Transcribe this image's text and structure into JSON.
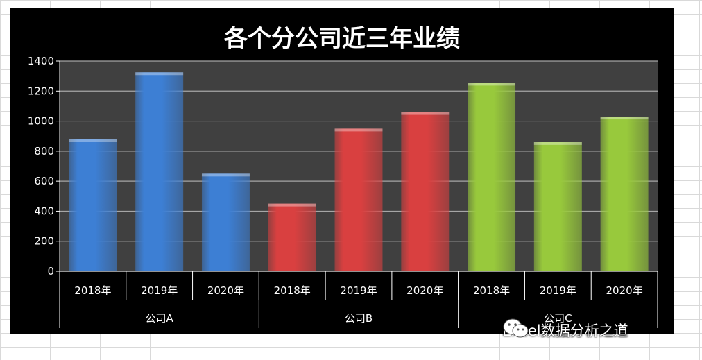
{
  "chart_data": {
    "type": "bar",
    "title": "各个分公司近三年业绩",
    "groups": [
      {
        "name": "公司A",
        "categories": [
          "2018年",
          "2019年",
          "2020年"
        ],
        "values": [
          880,
          1325,
          650
        ],
        "color": "#3d7fd4"
      },
      {
        "name": "公司B",
        "categories": [
          "2018年",
          "2019年",
          "2020年"
        ],
        "values": [
          450,
          950,
          1060
        ],
        "color": "#d94040"
      },
      {
        "name": "公司C",
        "categories": [
          "2018年",
          "2019年",
          "2020年"
        ],
        "values": [
          1255,
          860,
          1030
        ],
        "color": "#98c93c"
      }
    ],
    "ylim": [
      0,
      1400
    ],
    "yticks": [
      "0",
      "200",
      "400",
      "600",
      "800",
      "1000",
      "1200",
      "1400"
    ],
    "grid": true,
    "plot_background": "#404040"
  },
  "watermark": {
    "text": "Excel数据分析之道",
    "icon": "wechat-icon"
  }
}
